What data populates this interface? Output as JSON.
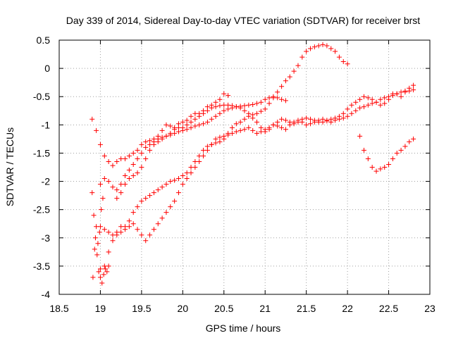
{
  "chart_data": {
    "type": "scatter",
    "title": "Day 339 of 2014, Sidereal Day-to-day VTEC variation (SDTVAR) for receiver brst",
    "xlabel": "GPS time / hours",
    "ylabel": "SDTVAR / TECUs",
    "xlim": [
      18.5,
      23
    ],
    "ylim": [
      -4,
      0.5
    ],
    "xticks": [
      18.5,
      19,
      19.5,
      20,
      20.5,
      21,
      21.5,
      22,
      22.5,
      23
    ],
    "yticks": [
      0.5,
      0,
      -0.5,
      -1,
      -1.5,
      -2,
      -2.5,
      -3,
      -3.5,
      -4
    ],
    "xtick_labels": [
      "18.5",
      "19",
      "19.5",
      "20",
      "20.5",
      "21",
      "21.5",
      "22",
      "22.5",
      "23"
    ],
    "ytick_labels": [
      "0.5",
      "0",
      "-0.5",
      "-1",
      "-1.5",
      "-2",
      "-2.5",
      "-3",
      "-3.5",
      "-4"
    ],
    "grid": true,
    "legend": "none",
    "marker": "plus",
    "color": "#ff0000",
    "series": [
      {
        "x": [
          18.9,
          18.95,
          19.0,
          19.05,
          19.1,
          19.15,
          19.2,
          19.25,
          19.3,
          19.35,
          19.4,
          19.45,
          19.5,
          19.55,
          19.6,
          19.65,
          19.7,
          19.75,
          19.8,
          19.85,
          19.9,
          19.95,
          20.0,
          20.05,
          20.1,
          20.15,
          20.2,
          20.25,
          20.3,
          20.35,
          20.4,
          20.45,
          20.5,
          20.55
        ],
        "y": [
          -0.9,
          -1.1,
          -1.35,
          -1.55,
          -1.65,
          -1.72,
          -1.65,
          -1.6,
          -1.6,
          -1.55,
          -1.5,
          -1.45,
          -1.35,
          -1.3,
          -1.28,
          -1.25,
          -1.2,
          -1.1,
          -1.0,
          -1.02,
          -1.05,
          -0.98,
          -0.95,
          -0.92,
          -0.85,
          -0.8,
          -0.8,
          -0.75,
          -0.68,
          -0.65,
          -0.6,
          -0.55,
          -0.45,
          -0.48
        ]
      },
      {
        "x": [
          19.0,
          19.05,
          19.1,
          19.15,
          19.2,
          19.25,
          19.3,
          19.35,
          19.4,
          19.45,
          19.5,
          19.55,
          19.6,
          19.65,
          19.7,
          19.75,
          19.8,
          19.85,
          19.9,
          19.95,
          20.0,
          20.05,
          20.1,
          20.15,
          20.2,
          20.25,
          20.3,
          20.35,
          20.4,
          20.45,
          20.5,
          20.55,
          20.6,
          20.65,
          20.7,
          20.75,
          20.8,
          20.85,
          20.9,
          20.95,
          21.0,
          21.05,
          21.1,
          21.15,
          21.2,
          21.25
        ],
        "y": [
          -2.05,
          -1.95,
          -2.0,
          -2.1,
          -2.15,
          -2.05,
          -1.9,
          -1.8,
          -1.7,
          -1.6,
          -1.5,
          -1.4,
          -1.35,
          -1.3,
          -1.25,
          -1.22,
          -1.2,
          -1.18,
          -1.15,
          -1.12,
          -1.1,
          -1.08,
          -1.05,
          -1.02,
          -1.0,
          -0.98,
          -0.95,
          -0.9,
          -0.85,
          -0.8,
          -0.75,
          -0.72,
          -0.7,
          -0.68,
          -0.67,
          -0.66,
          -0.65,
          -0.64,
          -0.62,
          -0.6,
          -0.55,
          -0.52,
          -0.5,
          -0.52,
          -0.55,
          -0.57
        ]
      },
      {
        "x": [
          19.0,
          19.05,
          19.1,
          19.15,
          19.2,
          19.25,
          19.3,
          19.35,
          19.4,
          19.45,
          19.5,
          19.55,
          19.6,
          19.65,
          19.7,
          19.75,
          19.8,
          19.85,
          19.9,
          19.95,
          20.0,
          20.05,
          20.1,
          20.15,
          20.2,
          20.25,
          20.3,
          20.35,
          20.4,
          20.45,
          20.5,
          20.55,
          20.6,
          20.65,
          20.7,
          20.75,
          20.8,
          20.85,
          20.9,
          20.95,
          21.0,
          21.05,
          21.1,
          21.15,
          21.2,
          21.25,
          21.3,
          21.35,
          21.4,
          21.45,
          21.5,
          21.55,
          21.6,
          21.65,
          21.7,
          21.75,
          21.8,
          21.85,
          21.9,
          21.95,
          22.0
        ],
        "y": [
          -3.55,
          -3.5,
          -3.25,
          -3.05,
          -2.95,
          -2.9,
          -2.8,
          -2.7,
          -2.55,
          -2.45,
          -2.35,
          -2.3,
          -2.25,
          -2.2,
          -2.15,
          -2.1,
          -2.05,
          -2.0,
          -1.98,
          -1.95,
          -1.9,
          -1.85,
          -1.75,
          -1.65,
          -1.55,
          -1.45,
          -1.38,
          -1.35,
          -1.32,
          -1.3,
          -1.25,
          -1.15,
          -1.05,
          -0.98,
          -0.95,
          -0.9,
          -0.85,
          -0.82,
          -0.8,
          -0.76,
          -0.72,
          -0.62,
          -0.52,
          -0.42,
          -0.32,
          -0.22,
          -0.15,
          -0.05,
          0.05,
          0.2,
          0.3,
          0.35,
          0.38,
          0.4,
          0.42,
          0.4,
          0.35,
          0.3,
          0.2,
          0.12,
          0.08
        ]
      },
      {
        "x": [
          19.0,
          19.05,
          19.1,
          19.15,
          19.2,
          19.25,
          19.3,
          19.35,
          19.4,
          19.45,
          19.5,
          19.55,
          19.6,
          19.65,
          19.7,
          19.75,
          19.8,
          19.85,
          19.9,
          19.95,
          20.0,
          20.05,
          20.1,
          20.15,
          20.2,
          20.25,
          20.3,
          20.35,
          20.4,
          20.45,
          20.5,
          20.55,
          20.6,
          20.65,
          20.7,
          20.75,
          20.8,
          20.85,
          20.9,
          20.95,
          21.0,
          21.05,
          21.1,
          21.15,
          21.2,
          21.25,
          21.3,
          21.35,
          21.4,
          21.45,
          21.5,
          21.55,
          21.6,
          21.65,
          21.7,
          21.75,
          21.8,
          21.85,
          21.9,
          21.95,
          22.0,
          22.05,
          22.1,
          22.15,
          22.2,
          22.25,
          22.3,
          22.35,
          22.4,
          22.45,
          22.5,
          22.55,
          22.6,
          22.65,
          22.7,
          22.75,
          22.8
        ],
        "y": [
          -2.8,
          -2.85,
          -2.9,
          -2.95,
          -2.9,
          -2.8,
          -2.85,
          -2.8,
          -2.75,
          -2.85,
          -2.95,
          -3.05,
          -2.95,
          -2.85,
          -2.75,
          -2.65,
          -2.55,
          -2.45,
          -2.35,
          -2.2,
          -2.05,
          -1.95,
          -1.85,
          -1.75,
          -1.65,
          -1.55,
          -1.45,
          -1.35,
          -1.25,
          -1.22,
          -1.2,
          -1.18,
          -1.15,
          -1.12,
          -1.1,
          -1.08,
          -1.05,
          -1.1,
          -1.15,
          -1.12,
          -1.08,
          -1.05,
          -1.0,
          -1.02,
          -1.05,
          -1.08,
          -1.0,
          -0.95,
          -0.92,
          -0.95,
          -1.0,
          -0.98,
          -0.95,
          -0.92,
          -0.9,
          -0.93,
          -0.95,
          -0.92,
          -0.9,
          -0.88,
          -0.85,
          -0.8,
          -0.75,
          -0.7,
          -0.68,
          -0.65,
          -0.62,
          -0.6,
          -0.55,
          -0.52,
          -0.5,
          -0.48,
          -0.45,
          -0.42,
          -0.4,
          -0.4,
          -0.38
        ]
      },
      {
        "x": [
          19.2,
          19.25,
          19.3,
          19.35,
          19.4,
          19.45,
          19.5,
          19.55,
          19.6,
          19.65,
          19.7,
          19.75,
          19.8,
          19.85,
          19.9,
          19.95,
          20.0,
          20.05,
          20.1,
          20.15,
          20.2,
          20.25,
          20.3,
          20.35,
          20.4,
          20.45,
          20.5,
          20.55,
          20.6,
          20.65,
          20.7,
          20.75,
          20.8,
          20.85,
          20.9,
          20.95,
          21.0,
          21.05,
          21.1,
          21.15,
          21.2,
          21.25,
          21.3,
          21.35,
          21.4,
          21.45,
          21.5,
          21.55,
          21.6,
          21.65,
          21.7,
          21.75,
          21.8,
          21.85,
          21.9,
          21.95,
          22.0,
          22.05,
          22.1,
          22.15,
          22.2,
          22.25,
          22.3,
          22.35,
          22.4,
          22.45,
          22.5,
          22.55,
          22.6,
          22.65,
          22.7,
          22.75,
          22.8
        ],
        "y": [
          -2.3,
          -2.2,
          -2.05,
          -1.95,
          -1.9,
          -1.85,
          -1.75,
          -1.6,
          -1.45,
          -1.35,
          -1.3,
          -1.25,
          -1.2,
          -1.15,
          -1.08,
          -1.05,
          -1.05,
          -1.0,
          -0.95,
          -0.9,
          -0.85,
          -0.8,
          -0.75,
          -0.7,
          -0.68,
          -0.66,
          -0.65,
          -0.65,
          -0.66,
          -0.68,
          -0.7,
          -0.75,
          -0.8,
          -0.88,
          -0.95,
          -1.05,
          -1.12,
          -1.08,
          -1.0,
          -0.95,
          -0.9,
          -0.92,
          -0.95,
          -0.98,
          -0.95,
          -0.9,
          -0.88,
          -0.9,
          -0.92,
          -0.95,
          -0.95,
          -0.92,
          -0.9,
          -0.88,
          -0.85,
          -0.8,
          -0.72,
          -0.65,
          -0.6,
          -0.55,
          -0.5,
          -0.52,
          -0.55,
          -0.6,
          -0.65,
          -0.62,
          -0.55,
          -0.45,
          -0.45,
          -0.5,
          -0.42,
          -0.35,
          -0.3
        ]
      },
      {
        "x": [
          22.15,
          22.2,
          22.25,
          22.3,
          22.35,
          22.4,
          22.45,
          22.5,
          22.55,
          22.6,
          22.65,
          22.7,
          22.75,
          22.8
        ],
        "y": [
          -1.2,
          -1.45,
          -1.6,
          -1.75,
          -1.82,
          -1.78,
          -1.75,
          -1.7,
          -1.6,
          -1.5,
          -1.45,
          -1.38,
          -1.3,
          -1.25
        ]
      },
      {
        "x": [
          18.9,
          18.92,
          18.94,
          18.96,
          18.98,
          19.0,
          19.02,
          19.04,
          19.06,
          19.08,
          19.1,
          18.91,
          18.93,
          18.95,
          18.97,
          18.99,
          19.01,
          19.03
        ],
        "y": [
          -2.2,
          -2.6,
          -3.0,
          -3.3,
          -3.6,
          -3.7,
          -3.8,
          -3.65,
          -3.55,
          -3.6,
          -3.5,
          -3.7,
          -3.2,
          -2.8,
          -3.1,
          -2.9,
          -2.5,
          -2.3
        ]
      }
    ]
  }
}
